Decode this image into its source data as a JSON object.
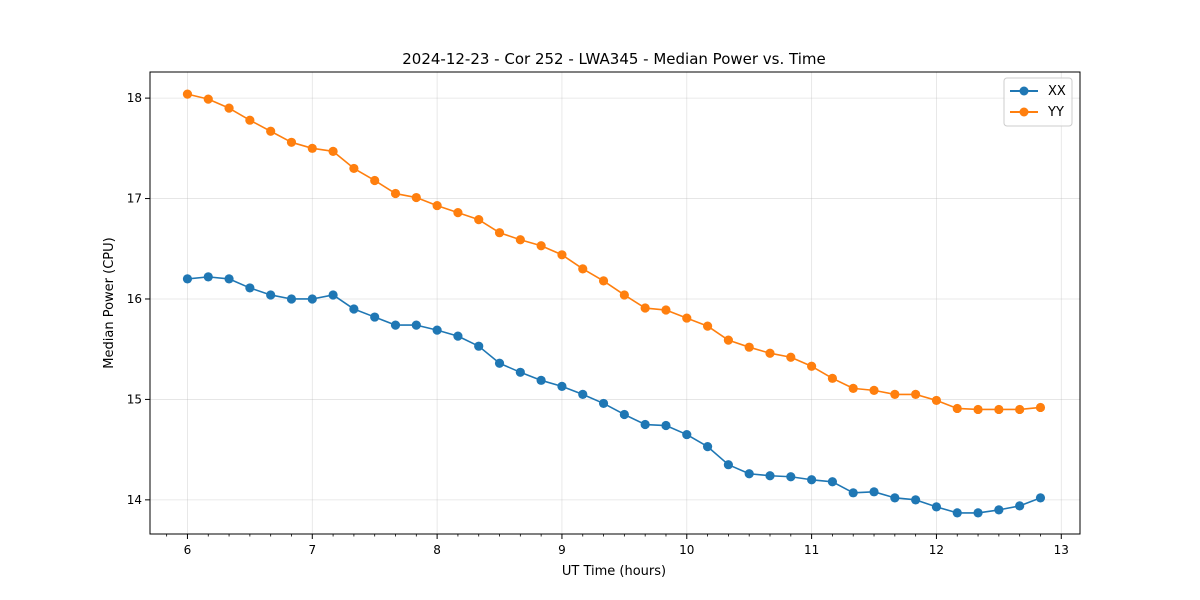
{
  "chart_data": {
    "type": "line",
    "title": "2024-12-23 - Cor 252 - LWA345 - Median Power vs. Time",
    "xlabel": "UT Time (hours)",
    "ylabel": "Median Power (CPU)",
    "xlim": [
      5.7,
      13.15
    ],
    "ylim": [
      13.66,
      18.26
    ],
    "xticks": [
      6,
      7,
      8,
      9,
      10,
      11,
      12,
      13
    ],
    "yticks": [
      14,
      15,
      16,
      17,
      18
    ],
    "grid": true,
    "legend_position": "top-right",
    "x": [
      6.0,
      6.1667,
      6.3333,
      6.5,
      6.6667,
      6.8333,
      7.0,
      7.1667,
      7.3333,
      7.5,
      7.6667,
      7.8333,
      8.0,
      8.1667,
      8.3333,
      8.5,
      8.6667,
      8.8333,
      9.0,
      9.1667,
      9.3333,
      9.5,
      9.6667,
      9.8333,
      10.0,
      10.1667,
      10.3333,
      10.5,
      10.6667,
      10.8333,
      11.0,
      11.1667,
      11.3333,
      11.5,
      11.6667,
      11.8333,
      12.0,
      12.1667,
      12.3333,
      12.5,
      12.6667,
      12.8333
    ],
    "series": [
      {
        "name": "XX",
        "color": "#1f77b4",
        "values": [
          16.2,
          16.22,
          16.2,
          16.11,
          16.04,
          16.0,
          16.0,
          16.04,
          15.9,
          15.82,
          15.74,
          15.74,
          15.69,
          15.63,
          15.53,
          15.36,
          15.27,
          15.19,
          15.13,
          15.05,
          14.96,
          14.85,
          14.75,
          14.74,
          14.65,
          14.53,
          14.35,
          14.26,
          14.24,
          14.23,
          14.2,
          14.18,
          14.07,
          14.08,
          14.02,
          14.0,
          13.93,
          13.87,
          13.87,
          13.9,
          13.94,
          14.02
        ]
      },
      {
        "name": "YY",
        "color": "#ff7f0e",
        "values": [
          18.04,
          17.99,
          17.9,
          17.78,
          17.67,
          17.56,
          17.5,
          17.47,
          17.3,
          17.18,
          17.05,
          17.01,
          16.93,
          16.86,
          16.79,
          16.66,
          16.59,
          16.53,
          16.44,
          16.3,
          16.18,
          16.04,
          15.91,
          15.89,
          15.81,
          15.73,
          15.59,
          15.52,
          15.46,
          15.42,
          15.33,
          15.21,
          15.11,
          15.09,
          15.05,
          15.05,
          14.99,
          14.91,
          14.9,
          14.9,
          14.9,
          14.92
        ]
      }
    ]
  }
}
